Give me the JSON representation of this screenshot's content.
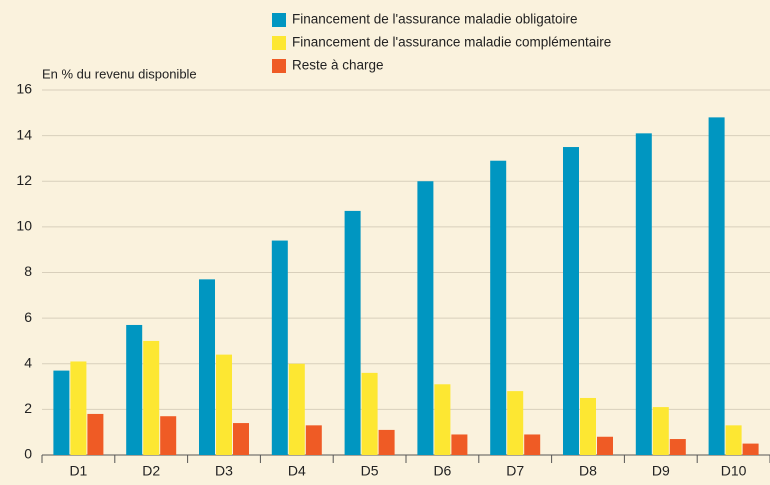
{
  "chart_data": {
    "type": "bar",
    "y_axis_label": "En % du revenu disponible",
    "categories": [
      "D1",
      "D2",
      "D3",
      "D4",
      "D5",
      "D6",
      "D7",
      "D8",
      "D9",
      "D10"
    ],
    "series": [
      {
        "name": "Financement de l'assurance maladie obligatoire",
        "color": "#0096c1",
        "values": [
          3.7,
          5.7,
          7.7,
          9.4,
          10.7,
          12.0,
          12.9,
          13.5,
          14.1,
          14.8
        ]
      },
      {
        "name": "Financement de l'assurance maladie complémentaire",
        "color": "#fde732",
        "values": [
          4.1,
          5.0,
          4.4,
          4.0,
          3.6,
          3.1,
          2.8,
          2.5,
          2.1,
          1.3
        ]
      },
      {
        "name": "Reste à charge",
        "color": "#ef5b25",
        "values": [
          1.8,
          1.7,
          1.4,
          1.3,
          1.1,
          0.9,
          0.9,
          0.8,
          0.7,
          0.5
        ]
      }
    ],
    "ylim": [
      0,
      16
    ],
    "yticks": [
      0,
      2,
      4,
      6,
      8,
      10,
      12,
      14,
      16
    ],
    "grid": true,
    "legend": "top"
  }
}
